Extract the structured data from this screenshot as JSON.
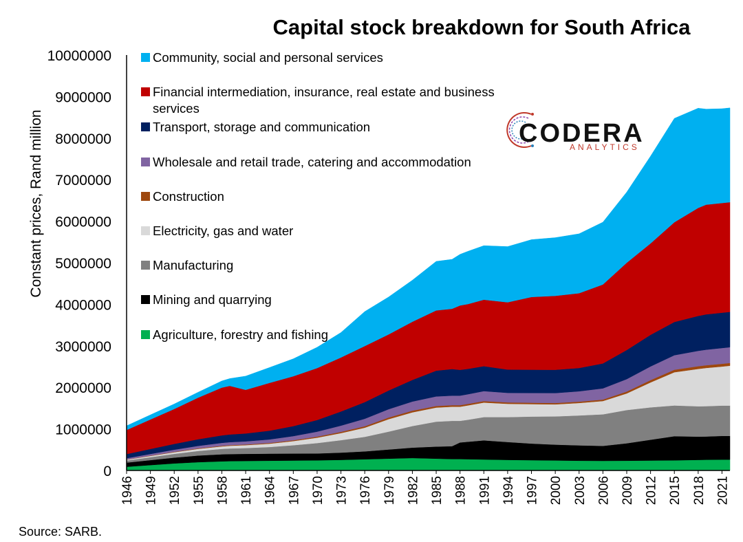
{
  "chart_data": {
    "type": "area",
    "stacked": true,
    "title": "Capital stock breakdown for South Africa",
    "ylabel": "Constant prices, Rand million",
    "xlabel": "",
    "ylim": [
      0,
      10000000
    ],
    "yticks": [
      "0",
      "1000000",
      "2000000",
      "3000000",
      "4000000",
      "5000000",
      "6000000",
      "7000000",
      "8000000",
      "9000000",
      "10000000"
    ],
    "xtick_labels": [
      "1946",
      "1949",
      "1952",
      "1955",
      "1958",
      "1961",
      "1964",
      "1967",
      "1970",
      "1973",
      "1976",
      "1979",
      "1982",
      "1985",
      "1988",
      "1991",
      "1994",
      "1997",
      "2000",
      "2003",
      "2006",
      "2009",
      "2012",
      "2015",
      "2018",
      "2021"
    ],
    "x_years": [
      1946,
      1949,
      1952,
      1955,
      1958,
      1959,
      1961,
      1964,
      1967,
      1970,
      1973,
      1976,
      1979,
      1982,
      1985,
      1987,
      1988,
      1989,
      1991,
      1994,
      1997,
      2000,
      2003,
      2006,
      2009,
      2012,
      2015,
      2018,
      2019,
      2021,
      2022
    ],
    "series": [
      {
        "name": "Agriculture, forestry and fishing",
        "color": "#00b050",
        "values": [
          90000,
          130000,
          170000,
          200000,
          220000,
          225000,
          230000,
          235000,
          240000,
          245000,
          255000,
          270000,
          285000,
          300000,
          285000,
          275000,
          275000,
          272000,
          265000,
          255000,
          248000,
          242000,
          235000,
          232000,
          235000,
          240000,
          245000,
          255000,
          258000,
          262000,
          262000
        ]
      },
      {
        "name": "Mining and quarrying",
        "color": "#000000",
        "values": [
          100000,
          120000,
          140000,
          160000,
          170000,
          170000,
          170000,
          170000,
          168000,
          165000,
          175000,
          190000,
          220000,
          250000,
          290000,
          310000,
          400000,
          420000,
          460000,
          430000,
          400000,
          380000,
          370000,
          360000,
          420000,
          500000,
          580000,
          560000,
          560000,
          570000,
          570000
        ]
      },
      {
        "name": "Manufacturing",
        "color": "#808080",
        "values": [
          50000,
          70000,
          90000,
          110000,
          130000,
          135000,
          140000,
          160000,
          200000,
          250000,
          300000,
          350000,
          430000,
          520000,
          600000,
          610000,
          520000,
          530000,
          560000,
          600000,
          650000,
          680000,
          720000,
          760000,
          800000,
          780000,
          740000,
          730000,
          730000,
          730000,
          730000
        ]
      },
      {
        "name": "Electricity, gas and water",
        "color": "#d9d9d9",
        "values": [
          20000,
          30000,
          40000,
          50000,
          60000,
          65000,
          70000,
          80000,
          100000,
          130000,
          170000,
          220000,
          300000,
          330000,
          340000,
          340000,
          340000,
          345000,
          350000,
          320000,
          300000,
          290000,
          300000,
          320000,
          400000,
          600000,
          800000,
          900000,
          920000,
          940000,
          960000
        ]
      },
      {
        "name": "Construction",
        "color": "#9e480e",
        "values": [
          5000,
          8000,
          10000,
          12000,
          15000,
          15000,
          16000,
          18000,
          20000,
          25000,
          30000,
          35000,
          40000,
          40000,
          38000,
          37000,
          37000,
          37000,
          36000,
          34000,
          33000,
          32000,
          32000,
          35000,
          45000,
          55000,
          60000,
          65000,
          65000,
          66000,
          66000
        ]
      },
      {
        "name": "Wholesale and retail trade, catering and accommodation",
        "color": "#8064a2",
        "values": [
          30000,
          40000,
          50000,
          60000,
          70000,
          72000,
          75000,
          85000,
          100000,
          120000,
          150000,
          180000,
          200000,
          220000,
          230000,
          230000,
          230000,
          232000,
          240000,
          230000,
          235000,
          240000,
          250000,
          270000,
          300000,
          330000,
          350000,
          370000,
          375000,
          380000,
          380000
        ]
      },
      {
        "name": "Transport, storage and communication",
        "color": "#002060",
        "values": [
          100000,
          120000,
          140000,
          160000,
          180000,
          185000,
          190000,
          210000,
          240000,
          280000,
          340000,
          400000,
          450000,
          520000,
          620000,
          640000,
          620000,
          610000,
          600000,
          560000,
          560000,
          560000,
          560000,
          600000,
          700000,
          760000,
          800000,
          840000,
          850000,
          850000,
          850000
        ]
      },
      {
        "name": "Financial intermediation, insurance, real estate and business services",
        "color": "#c00000",
        "values": [
          580000,
          710000,
          840000,
          1000000,
          1150000,
          1170000,
          1050000,
          1150000,
          1200000,
          1250000,
          1300000,
          1350000,
          1350000,
          1400000,
          1450000,
          1450000,
          1550000,
          1560000,
          1600000,
          1620000,
          1750000,
          1780000,
          1800000,
          1900000,
          2100000,
          2200000,
          2400000,
          2600000,
          2640000,
          2640000,
          2640000
        ]
      },
      {
        "name": "Community, social and personal services",
        "color": "#00b0f0",
        "values": [
          100000,
          110000,
          120000,
          130000,
          160000,
          175000,
          330000,
          370000,
          420000,
          500000,
          600000,
          830000,
          900000,
          1000000,
          1180000,
          1190000,
          1230000,
          1270000,
          1300000,
          1340000,
          1380000,
          1400000,
          1430000,
          1500000,
          1700000,
          2100000,
          2500000,
          2400000,
          2300000,
          2270000,
          2270000
        ]
      }
    ],
    "legend_position": "top-left inside",
    "grid": false
  },
  "source": "Source: SARB.",
  "logo": {
    "main": "CODERA",
    "sub": "ANALYTICS"
  }
}
